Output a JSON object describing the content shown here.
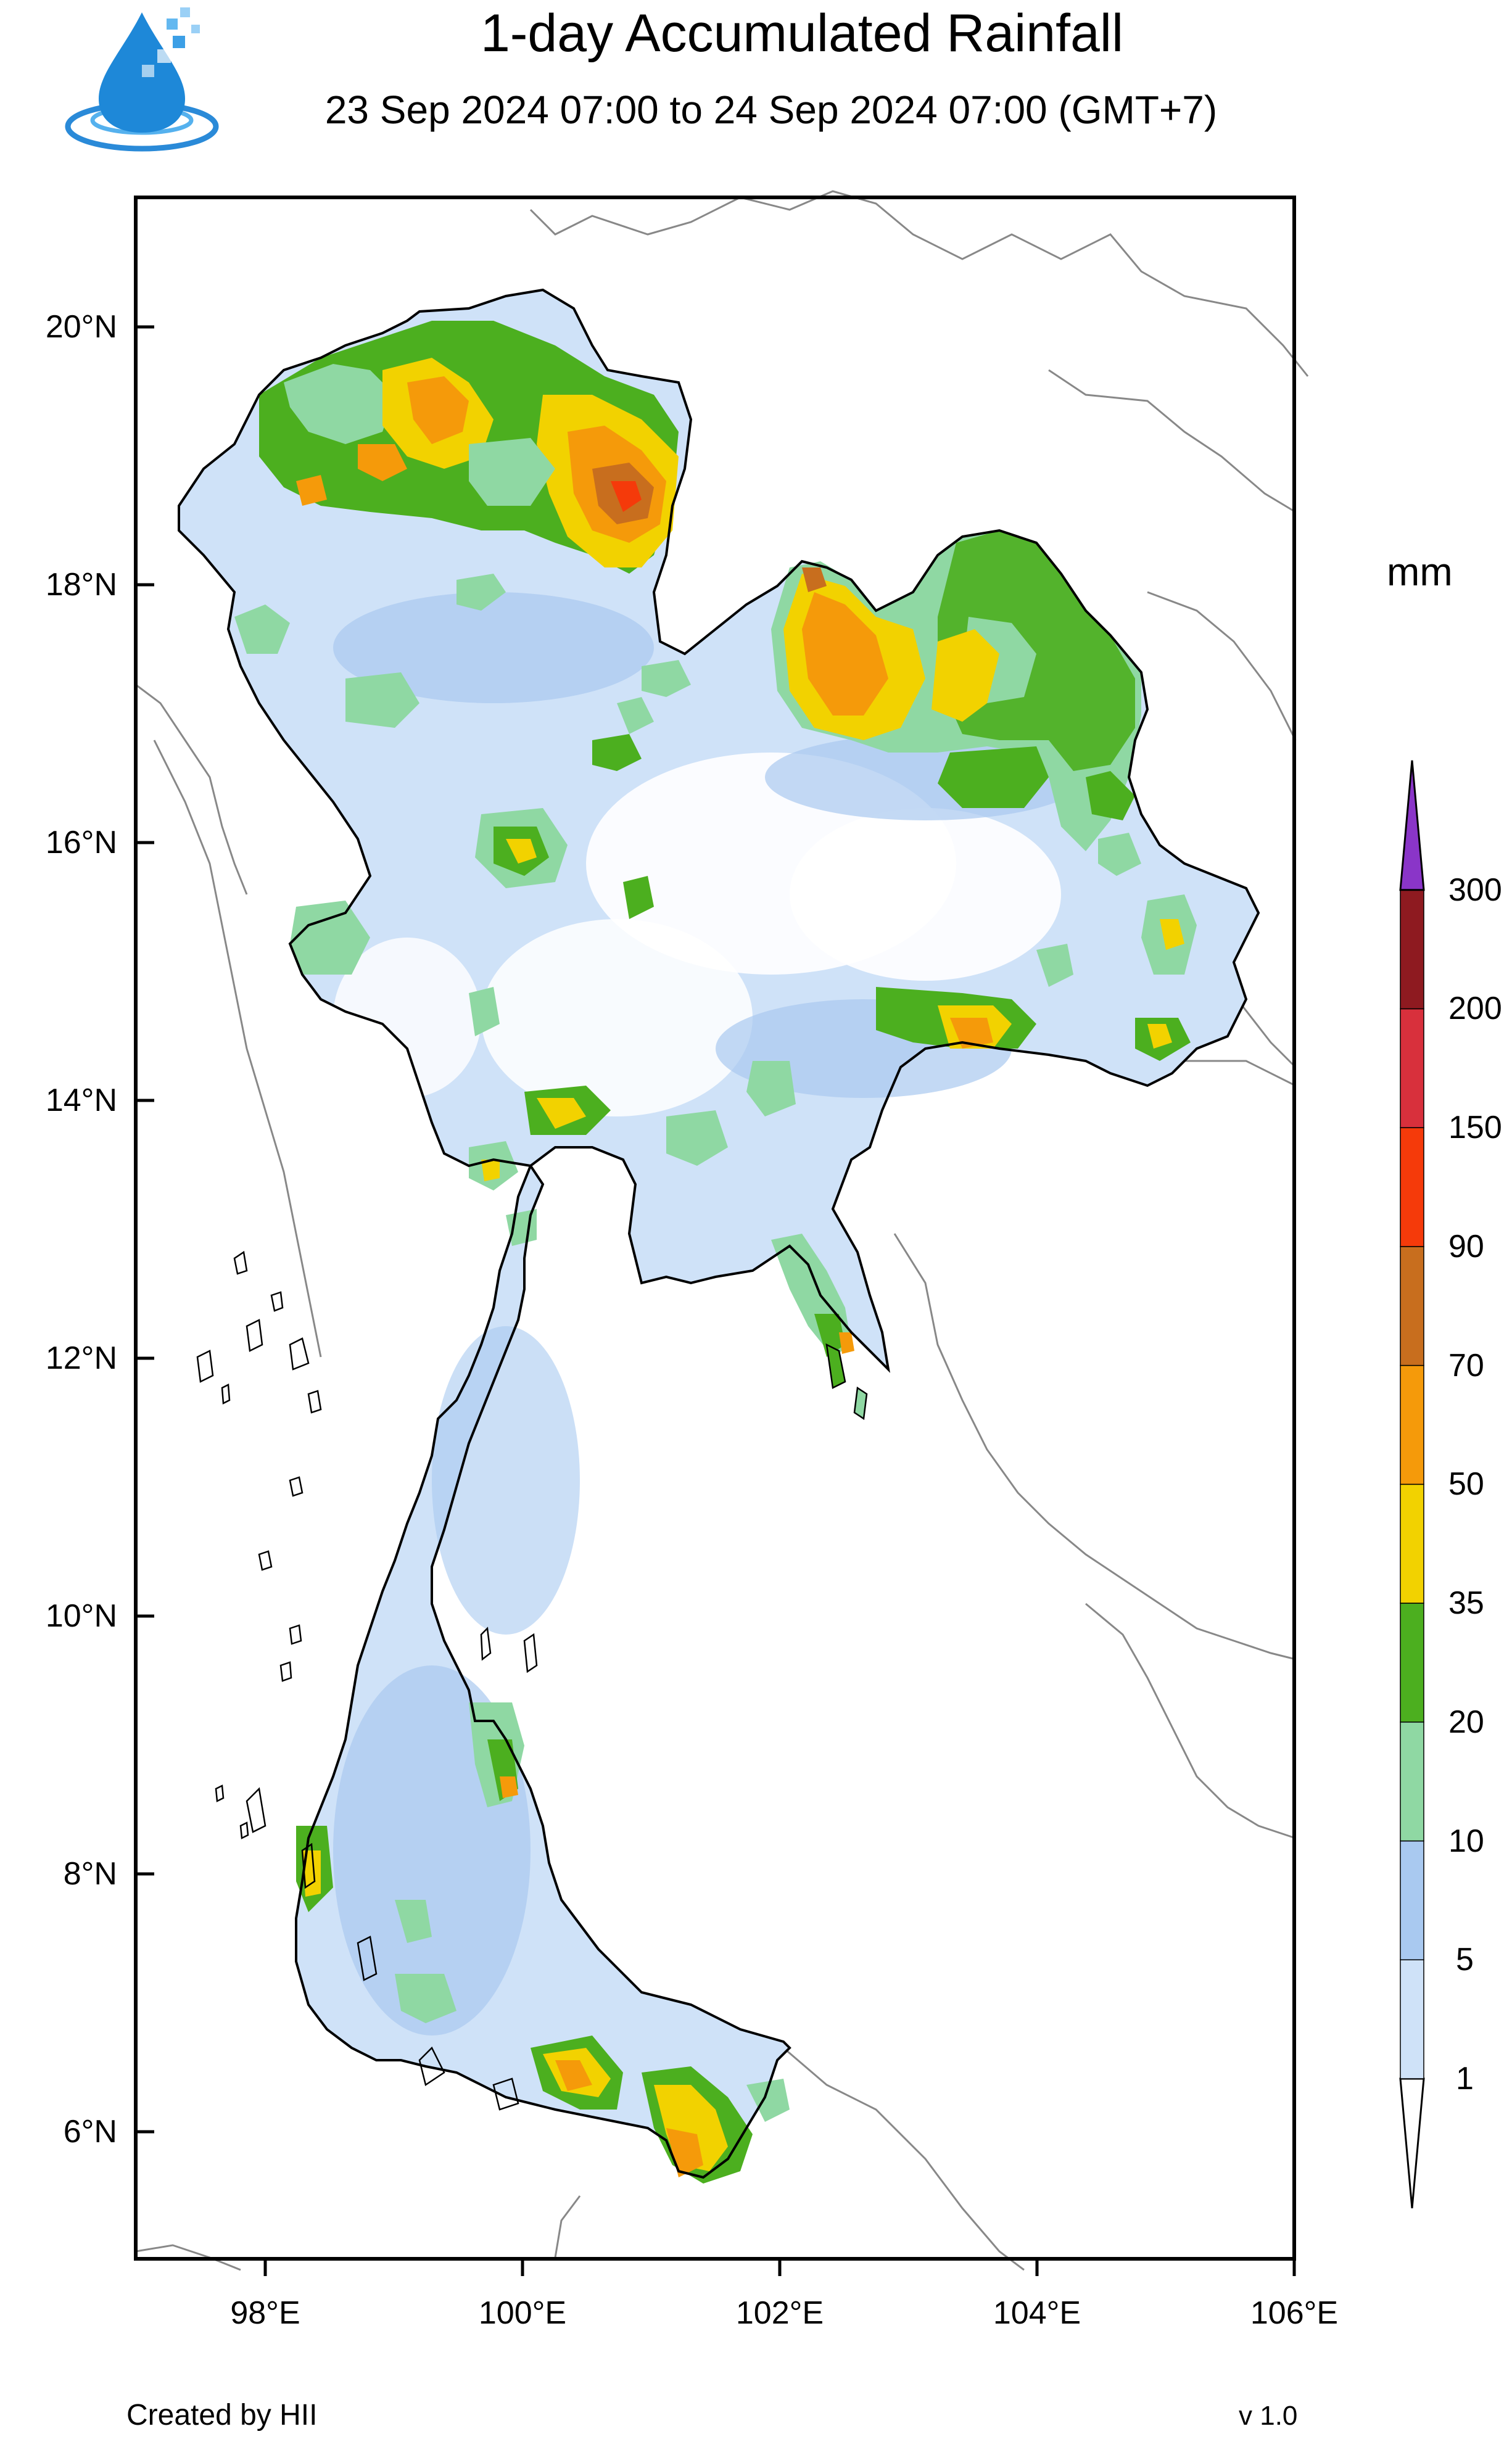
{
  "header": {
    "title": "1-day Accumulated Rainfall",
    "subtitle": "23 Sep 2024 07:00 to 24 Sep 2024 07:00 (GMT+7)"
  },
  "map_axes": {
    "lat_labels": [
      {
        "lat": 20,
        "label": "20°N"
      },
      {
        "lat": 18,
        "label": "18°N"
      },
      {
        "lat": 16,
        "label": "16°N"
      },
      {
        "lat": 14,
        "label": "14°N"
      },
      {
        "lat": 12,
        "label": "12°N"
      },
      {
        "lat": 10,
        "label": "10°N"
      },
      {
        "lat": 8,
        "label": "8°N"
      },
      {
        "lat": 6,
        "label": "6°N"
      }
    ],
    "lon_labels": [
      {
        "lon": 98,
        "label": "98°E"
      },
      {
        "lon": 100,
        "label": "100°E"
      },
      {
        "lon": 102,
        "label": "102°E"
      },
      {
        "lon": 104,
        "label": "104°E"
      },
      {
        "lon": 106,
        "label": "106°E"
      }
    ],
    "lon_range": [
      97,
      106
    ],
    "lat_range": [
      5,
      21
    ]
  },
  "colorbar": {
    "unit": "mm",
    "levels": [
      "1",
      "5",
      "10",
      "20",
      "35",
      "50",
      "70",
      "90",
      "150",
      "200",
      "300"
    ],
    "colors": [
      "#cfe2f8",
      "#a9c9f0",
      "#8fd8a3",
      "#4caf1f",
      "#f2d200",
      "#f59a0a",
      "#c86e1e",
      "#f53a0a",
      "#d8303c",
      "#8e1a20",
      "#8a35c8"
    ]
  },
  "footer": {
    "credit": "Created by HII",
    "version": "v 1.0"
  },
  "colors": {
    "land_fill": "#ffffff",
    "border_line": "#000000",
    "province_line": "#c8c8c8",
    "neighbor_line": "#888888"
  }
}
